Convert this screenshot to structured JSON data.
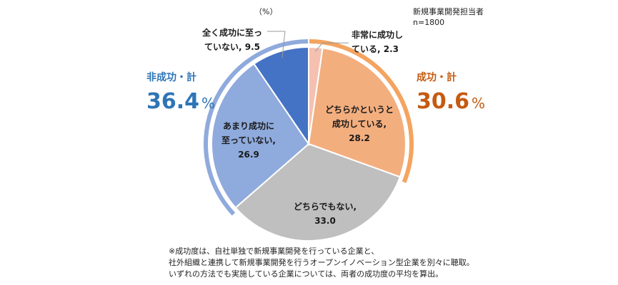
{
  "chart_data": {
    "type": "pie",
    "unit": "（%）",
    "respondents": [
      "新規事業開発担当者",
      "n=1800"
    ],
    "slices": [
      {
        "label_lines": [
          "非常に成功し",
          "ている, 2.3"
        ],
        "value": 2.3,
        "color": "#f4c1b1"
      },
      {
        "label_lines": [
          "どちらかというと",
          "成功している,",
          "28.2"
        ],
        "value": 28.2,
        "color": "#f3ae7e"
      },
      {
        "label_lines": [
          "どちらでもない,",
          "33.0"
        ],
        "value": 33.0,
        "color": "#bfbfbf"
      },
      {
        "label_lines": [
          "あまり成功に",
          "至っていない,",
          "26.9"
        ],
        "value": 26.9,
        "color": "#8faadc"
      },
      {
        "label_lines": [
          "全く成功に至っ",
          "ていない, 9.5"
        ],
        "value": 9.5,
        "color": "#4472c4"
      }
    ],
    "groups": {
      "success": {
        "title": "成功・計",
        "value": "30.6",
        "pct": "%",
        "color": "#c55a11",
        "ring_color": "#f4a460"
      },
      "failure": {
        "title": "非成功・計",
        "value": "36.4",
        "pct": "%",
        "color": "#2e75b6",
        "ring_color": "#8faadc"
      }
    }
  },
  "footnote": [
    "※成功度は、自社単独で新規事業開発を行っている企業と、",
    "社外組織と連携して新規事業開発を行うオープンイノベーション型企業を別々に聴取。",
    "いずれの方法でも実施している企業については、両者の成功度の平均を算出。"
  ]
}
